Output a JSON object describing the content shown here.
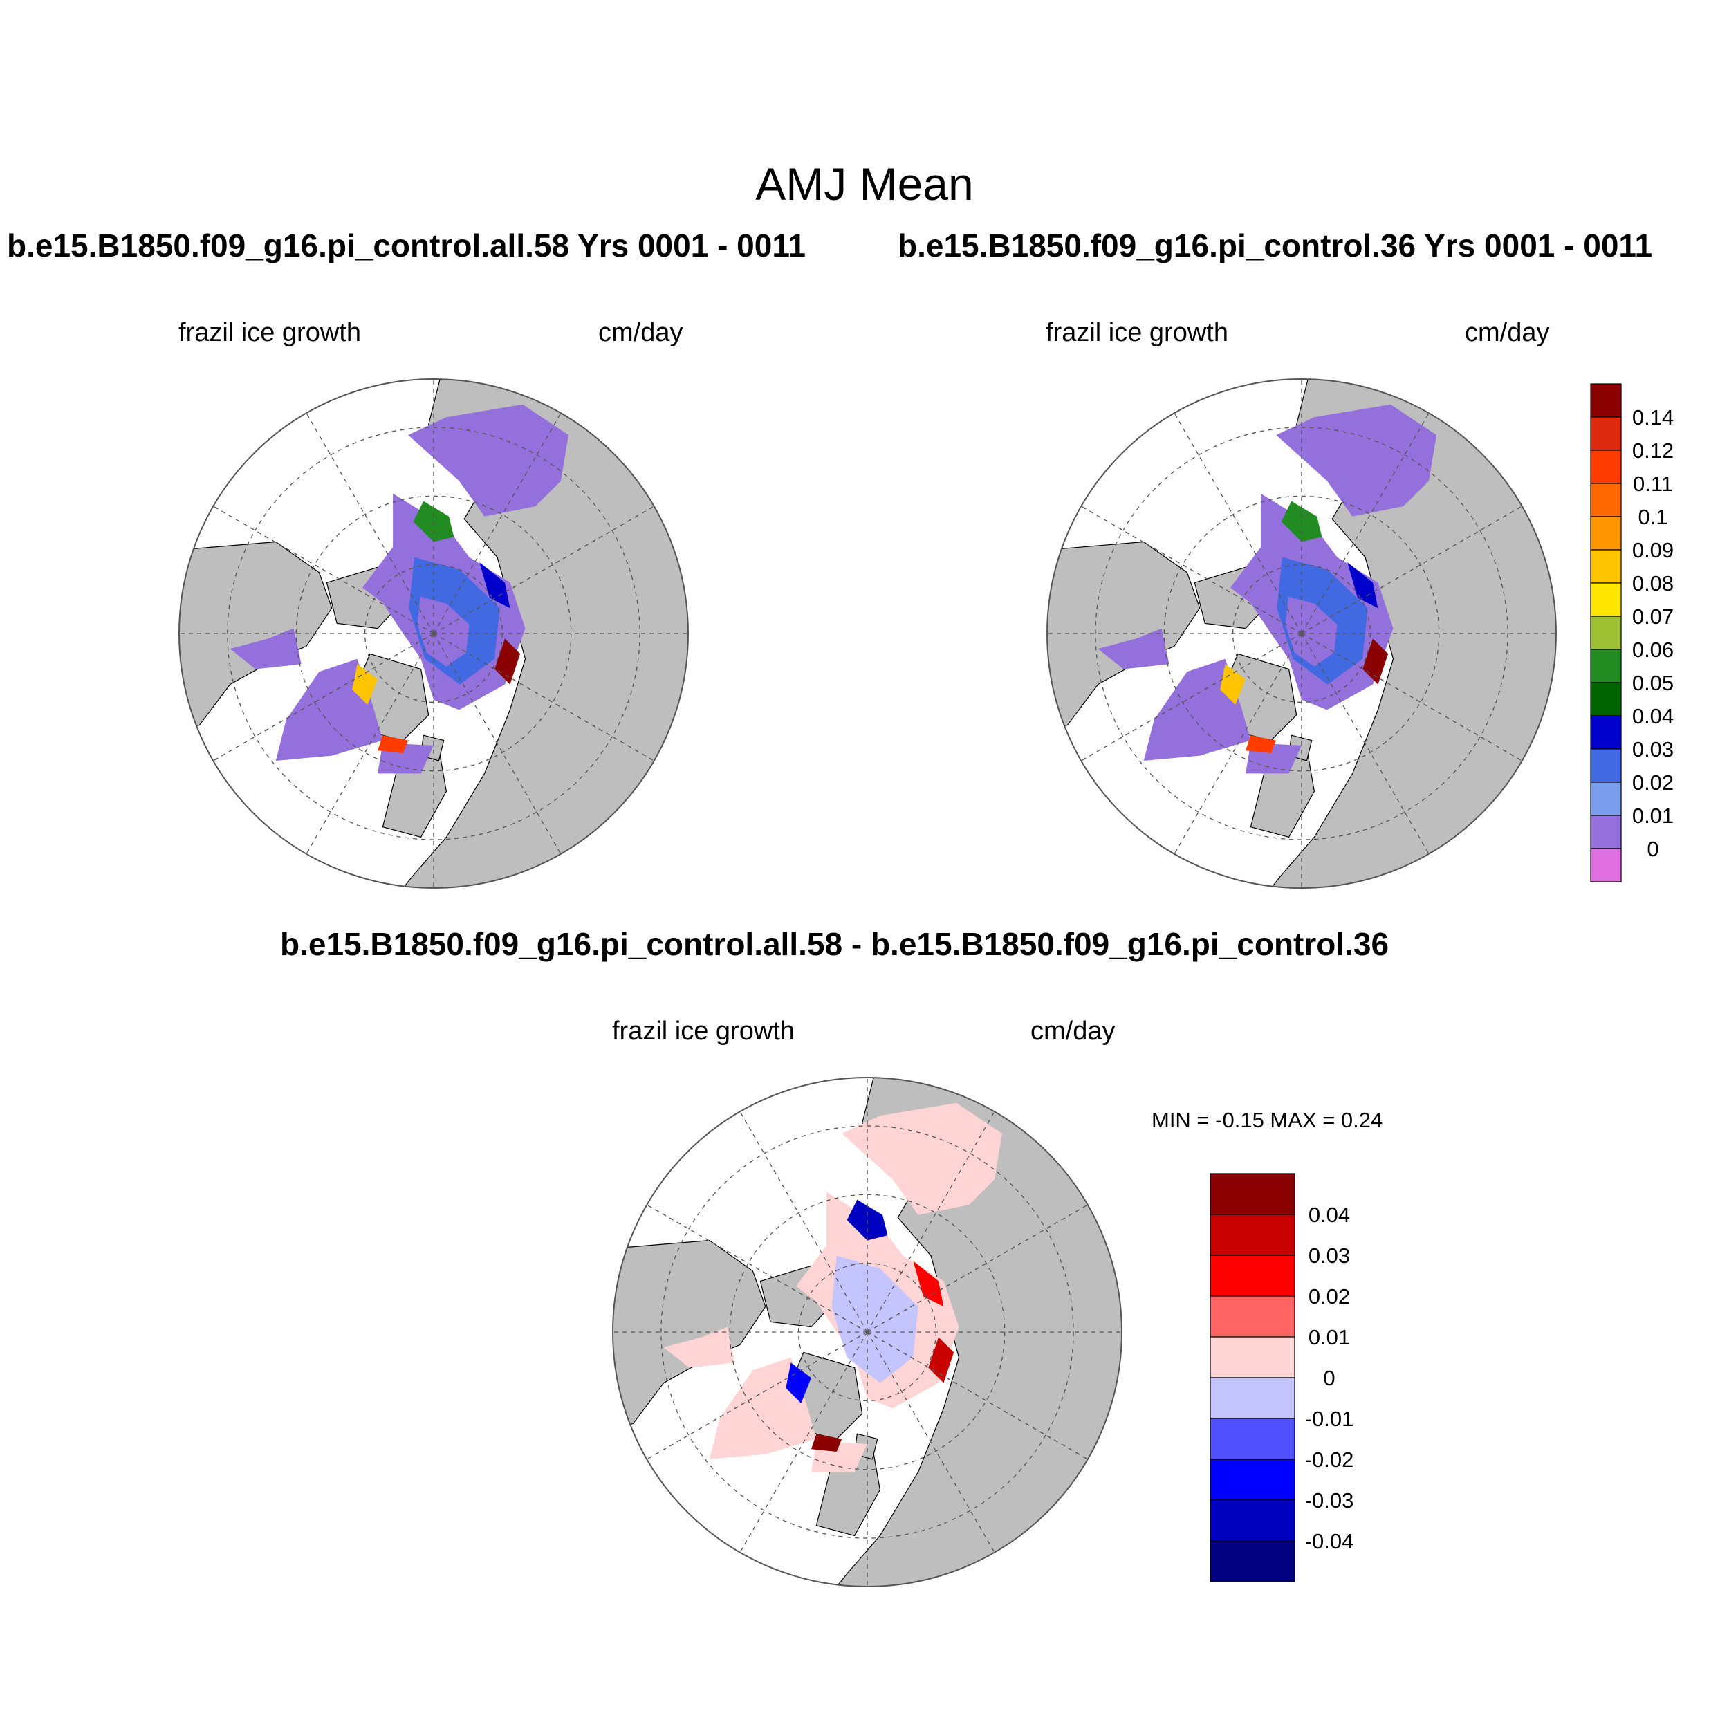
{
  "page": {
    "title": "AMJ Mean"
  },
  "panels": [
    {
      "id": "panel-a",
      "title": "b.e15.B1850.f09_g16.pi_control.all.58  Yrs 0001 - 0011",
      "left_label": "frazil ice growth",
      "right_label": "cm/day"
    },
    {
      "id": "panel-b",
      "title": "b.e15.B1850.f09_g16.pi_control.36  Yrs 0001 - 0011",
      "left_label": "frazil ice growth",
      "right_label": "cm/day"
    },
    {
      "id": "panel-diff",
      "title": "b.e15.B1850.f09_g16.pi_control.all.58 - b.e15.B1850.f09_g16.pi_control.36",
      "left_label": "frazil ice growth",
      "right_label": "cm/day",
      "minmax": "MIN =  -0.15 MAX =   0.24"
    }
  ],
  "chart_data": [
    {
      "type": "heatmap",
      "projection": "north-polar-stereographic",
      "title": "b.e15.B1850.f09_g16.pi_control.all.58  Yrs 0001 - 0011",
      "variable": "frazil ice growth",
      "units": "cm/day",
      "colorbar_ref": "absolute"
    },
    {
      "type": "heatmap",
      "projection": "north-polar-stereographic",
      "title": "b.e15.B1850.f09_g16.pi_control.36  Yrs 0001 - 0011",
      "variable": "frazil ice growth",
      "units": "cm/day",
      "colorbar_ref": "absolute"
    },
    {
      "type": "heatmap",
      "projection": "north-polar-stereographic",
      "title": "b.e15.B1850.f09_g16.pi_control.all.58 - b.e15.B1850.f09_g16.pi_control.36",
      "variable": "frazil ice growth",
      "units": "cm/day",
      "min": -0.15,
      "max": 0.24,
      "colorbar_ref": "difference"
    }
  ],
  "colorbars": {
    "absolute": {
      "labels": [
        "0.14",
        "0.12",
        "0.11",
        "0.1",
        "0.09",
        "0.08",
        "0.07",
        "0.06",
        "0.05",
        "0.04",
        "0.03",
        "0.02",
        "0.01",
        "0"
      ],
      "colors": [
        "#8b0000",
        "#dd2a0e",
        "#ff3c00",
        "#ff6a00",
        "#ff9600",
        "#ffc400",
        "#ffe600",
        "#9dc132",
        "#228b22",
        "#006400",
        "#0000cd",
        "#4169e1",
        "#7b9eee",
        "#9370db",
        "#e070e0"
      ]
    },
    "difference": {
      "labels": [
        "0.04",
        "0.03",
        "0.02",
        "0.01",
        "0",
        "-0.01",
        "-0.02",
        "-0.03",
        "-0.04"
      ],
      "colors": [
        "#8b0000",
        "#c80000",
        "#ff0000",
        "#ff6464",
        "#ffd4d4",
        "#c4c4ff",
        "#5050ff",
        "#0000ff",
        "#0000c0",
        "#000080"
      ]
    }
  },
  "map_colors": {
    "land": "#bebebe",
    "ocean": "#ffffff",
    "grid": "#555555"
  }
}
